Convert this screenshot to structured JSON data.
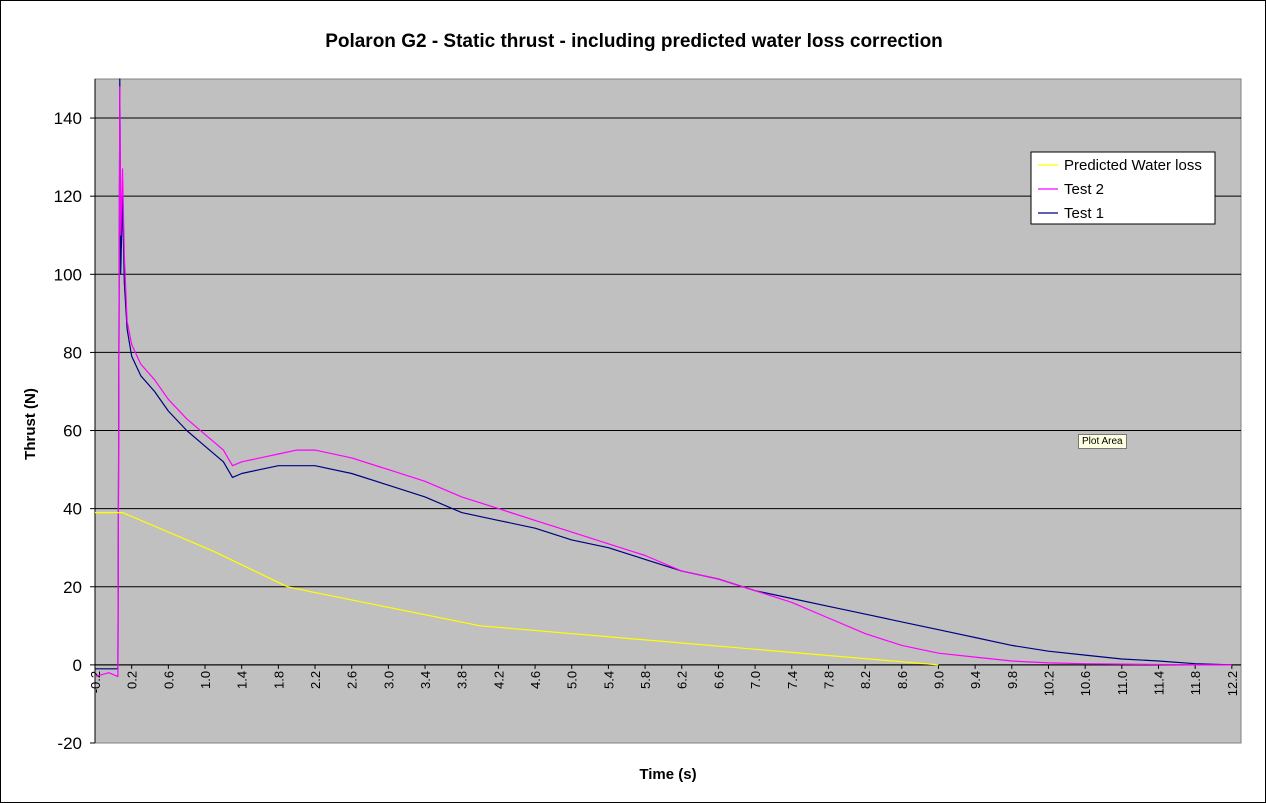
{
  "chart_data": {
    "type": "line",
    "title": "Polaron G2 - Static thrust - including predicted water loss correction",
    "xlabel": "Time (s)",
    "ylabel": "Thrust (N)",
    "xlim": [
      -0.2,
      12.3
    ],
    "ylim": [
      -20,
      150
    ],
    "yticks": [
      -20,
      0,
      20,
      40,
      60,
      80,
      100,
      120,
      140
    ],
    "xtick_labels": [
      "-0.2",
      "0.2",
      "0.6",
      "1.0",
      "1.4",
      "1.8",
      "2.2",
      "2.6",
      "3.0",
      "3.4",
      "3.8",
      "4.2",
      "4.6",
      "5.0",
      "5.4",
      "5.8",
      "6.2",
      "6.6",
      "7.0",
      "7.4",
      "7.8",
      "8.2",
      "8.6",
      "9.0",
      "9.4",
      "9.8",
      "10.2",
      "10.6",
      "11.0",
      "11.4",
      "11.8",
      "12.2"
    ],
    "grid": "horizontal",
    "legend_position": "top-right",
    "background": "#c0c0c0",
    "series": [
      {
        "name": "Predicted Water loss",
        "color": "#ffff00",
        "x": [
          -0.2,
          0.1,
          1.1,
          1.9,
          2.2,
          4.0,
          9.0
        ],
        "y": [
          39,
          39,
          29,
          20,
          18.5,
          10,
          0
        ]
      },
      {
        "name": "Test 2",
        "color": "#ff00ff",
        "x": [
          -0.2,
          -0.05,
          0.05,
          0.07,
          0.08,
          0.1,
          0.12,
          0.15,
          0.2,
          0.3,
          0.45,
          0.6,
          0.8,
          1.0,
          1.2,
          1.3,
          1.4,
          1.6,
          1.8,
          2.0,
          2.2,
          2.6,
          3.0,
          3.4,
          3.8,
          4.2,
          4.6,
          5.0,
          5.4,
          5.8,
          6.2,
          6.6,
          7.0,
          7.4,
          7.8,
          8.2,
          8.6,
          9.0,
          9.4,
          9.8,
          10.2,
          10.6,
          11.0,
          11.4,
          11.8,
          12.2
        ],
        "y": [
          -3,
          -2,
          -3,
          148,
          110,
          127,
          105,
          88,
          82,
          77,
          73,
          68,
          63,
          59,
          55,
          51,
          52,
          53,
          54,
          55,
          55,
          53,
          50,
          47,
          43,
          40,
          37,
          34,
          31,
          28,
          24,
          22,
          19,
          16,
          12,
          8,
          5,
          3,
          2,
          1,
          0.5,
          0.3,
          0.2,
          0.1,
          0,
          0
        ]
      },
      {
        "name": "Test 1",
        "color": "#000080",
        "x": [
          -0.2,
          -0.05,
          0.05,
          0.07,
          0.08,
          0.1,
          0.12,
          0.15,
          0.2,
          0.3,
          0.45,
          0.6,
          0.8,
          1.0,
          1.2,
          1.3,
          1.4,
          1.6,
          1.8,
          2.0,
          2.2,
          2.6,
          3.0,
          3.4,
          3.8,
          4.2,
          4.6,
          5.0,
          5.4,
          5.8,
          6.2,
          6.6,
          7.0,
          7.4,
          7.8,
          8.2,
          8.6,
          9.0,
          9.4,
          9.8,
          10.2,
          10.6,
          11.0,
          11.4,
          11.8,
          12.2
        ],
        "y": [
          -1,
          -1,
          -1,
          150,
          100,
          120,
          98,
          86,
          79,
          74,
          70,
          65,
          60,
          56,
          52,
          48,
          49,
          50,
          51,
          51,
          51,
          49,
          46,
          43,
          39,
          37,
          35,
          32,
          30,
          27,
          24,
          22,
          19,
          17,
          15,
          13,
          11,
          9,
          7,
          5,
          3.5,
          2.5,
          1.5,
          1,
          0.3,
          0
        ]
      }
    ]
  },
  "ui": {
    "tooltip": "Plot Area"
  }
}
